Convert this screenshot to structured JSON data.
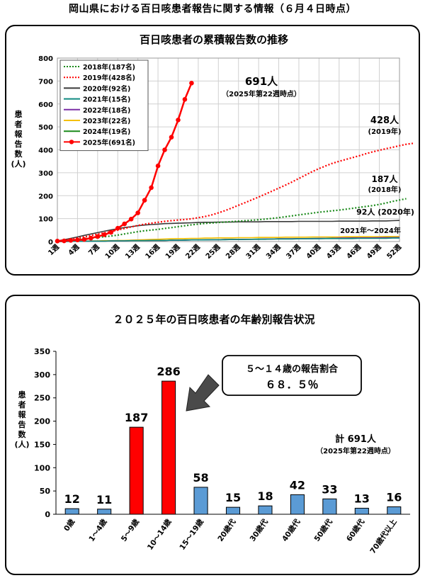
{
  "page_title": "岡山県における百日咳患者報告に関する情報（６月４日時点）",
  "colors": {
    "2018": "#1a8a1a",
    "2019": "#ff0000",
    "2020": "#3a3a3a",
    "2021": "#0f8a80",
    "2022": "#7b2fa5",
    "2023": "#f5c000",
    "2024": "#1a8a1a",
    "2025": "#ff0000",
    "bar_blue": "#5b9bd5",
    "bar_red": "#ff0000"
  },
  "chart_data": [
    {
      "type": "line",
      "title": "百日咳患者の累積報告数の推移",
      "ylabel": "患者報告数(人)",
      "ylim": [
        0,
        800
      ],
      "yticks": [
        "0",
        "100",
        "200",
        "300",
        "400",
        "500",
        "600",
        "700",
        "800"
      ],
      "xticks": [
        "1週",
        "4週",
        "7週",
        "10週",
        "13週",
        "16週",
        "19週",
        "22週",
        "25週",
        "28週",
        "31週",
        "34週",
        "37週",
        "40週",
        "43週",
        "46週",
        "49週",
        "52週"
      ],
      "grid": true,
      "legend_placement": "top-left",
      "series": [
        {
          "name": "2018年(187名)",
          "key": "2018",
          "style": "dotted",
          "values": [
            2,
            4,
            6,
            9,
            12,
            15,
            18,
            21,
            24,
            28,
            33,
            38,
            43,
            47,
            50,
            53,
            57,
            61,
            65,
            69,
            73,
            76,
            79,
            81,
            83,
            85,
            87,
            89,
            91,
            93,
            95,
            98,
            101,
            104,
            108,
            112,
            116,
            120,
            124,
            128,
            131,
            134,
            137,
            141,
            145,
            149,
            153,
            157,
            162,
            168,
            175,
            181,
            187
          ]
        },
        {
          "name": "2019年(428名)",
          "key": "2019",
          "style": "dotted",
          "values": [
            3,
            6,
            10,
            15,
            20,
            26,
            32,
            38,
            44,
            50,
            57,
            64,
            70,
            76,
            80,
            84,
            88,
            91,
            94,
            96,
            99,
            104,
            109,
            116,
            125,
            135,
            146,
            158,
            170,
            182,
            194,
            207,
            220,
            233,
            246,
            260,
            275,
            290,
            305,
            318,
            330,
            341,
            350,
            358,
            366,
            374,
            383,
            391,
            398,
            405,
            411,
            418,
            424,
            428
          ]
        },
        {
          "name": "2020年(92名)",
          "key": "2020",
          "style": "solid",
          "values": [
            3,
            8,
            14,
            20,
            27,
            33,
            39,
            45,
            51,
            56,
            61,
            65,
            69,
            72,
            74,
            76,
            78,
            79,
            80,
            81,
            82,
            83,
            84,
            84,
            85,
            85,
            85,
            86,
            86,
            86,
            86,
            87,
            87,
            87,
            87,
            87,
            88,
            88,
            88,
            88,
            88,
            88,
            89,
            89,
            89,
            89,
            89,
            90,
            90,
            90,
            91,
            92
          ]
        },
        {
          "name": "2021年(15名)",
          "key": "2021",
          "style": "solid",
          "values": [
            0,
            0,
            1,
            1,
            1,
            2,
            2,
            2,
            3,
            3,
            3,
            4,
            4,
            4,
            5,
            5,
            5,
            6,
            6,
            6,
            7,
            7,
            7,
            8,
            8,
            8,
            9,
            9,
            9,
            10,
            10,
            10,
            11,
            11,
            11,
            11,
            12,
            12,
            12,
            12,
            13,
            13,
            13,
            13,
            13,
            14,
            14,
            14,
            14,
            14,
            15,
            15
          ]
        },
        {
          "name": "2022年(18名)",
          "key": "2022",
          "style": "solid",
          "values": [
            0,
            0,
            1,
            1,
            1,
            2,
            2,
            2,
            3,
            3,
            3,
            4,
            4,
            4,
            5,
            5,
            5,
            6,
            6,
            6,
            7,
            7,
            7,
            8,
            8,
            9,
            9,
            9,
            10,
            10,
            10,
            11,
            11,
            12,
            12,
            12,
            13,
            13,
            13,
            14,
            14,
            14,
            15,
            15,
            15,
            16,
            16,
            16,
            17,
            17,
            17,
            18
          ]
        },
        {
          "name": "2023年(22名)",
          "key": "2023",
          "style": "solid",
          "values": [
            0,
            1,
            1,
            2,
            2,
            3,
            3,
            4,
            4,
            5,
            5,
            6,
            7,
            8,
            9,
            10,
            11,
            12,
            13,
            13,
            14,
            14,
            15,
            15,
            16,
            16,
            16,
            17,
            17,
            17,
            18,
            18,
            18,
            18,
            19,
            19,
            19,
            19,
            20,
            20,
            20,
            20,
            20,
            21,
            21,
            21,
            21,
            21,
            21,
            22,
            22,
            22
          ]
        },
        {
          "name": "2024年(19名)",
          "key": "2024",
          "style": "solid",
          "values": [
            0,
            0,
            1,
            1,
            1,
            2,
            2,
            2,
            3,
            3,
            3,
            4,
            4,
            4,
            5,
            5,
            5,
            6,
            6,
            7,
            7,
            7,
            8,
            8,
            8,
            9,
            9,
            9,
            10,
            10,
            11,
            11,
            11,
            12,
            12,
            12,
            13,
            13,
            14,
            14,
            14,
            15,
            15,
            15,
            16,
            16,
            17,
            17,
            17,
            18,
            18,
            19
          ]
        },
        {
          "name": "2025年(691名)",
          "key": "2025",
          "style": "marker",
          "values": [
            2,
            3,
            5,
            7,
            9,
            15,
            22,
            30,
            40,
            58,
            77,
            98,
            125,
            180,
            235,
            330,
            400,
            455,
            530,
            620,
            691
          ]
        }
      ],
      "annotations": {
        "a2025_value": "691人",
        "a2025_note": "（2025年第22週時点）",
        "a2019_value": "428人",
        "a2019_note": "(2019年)",
        "a2018_value": "187人",
        "a2018_note": "(2018年)",
        "a2020": "92人 (2020年)",
        "a_range": "2021年～2024年"
      }
    },
    {
      "type": "bar",
      "title": "２０２５年の百日咳患者の年齢別報告状況",
      "ylabel": "患者報告数(人)",
      "ylim": [
        0,
        350
      ],
      "yticks": [
        "0",
        "50",
        "100",
        "150",
        "200",
        "250",
        "300",
        "350"
      ],
      "categories": [
        "0歳",
        "1～4歳",
        "5～9歳",
        "10～14歳",
        "15～19歳",
        "20歳代",
        "30歳代",
        "40歳代",
        "50歳代",
        "60歳代",
        "70歳代以上"
      ],
      "values": [
        12,
        11,
        187,
        286,
        58,
        15,
        18,
        42,
        33,
        13,
        16
      ],
      "highlight": [
        2,
        3
      ],
      "callout": {
        "line1": "５～１４歳の報告割合",
        "line2": "６８．５％"
      },
      "total": {
        "label": "計 691人",
        "note": "（2025年第22週時点）"
      }
    }
  ]
}
